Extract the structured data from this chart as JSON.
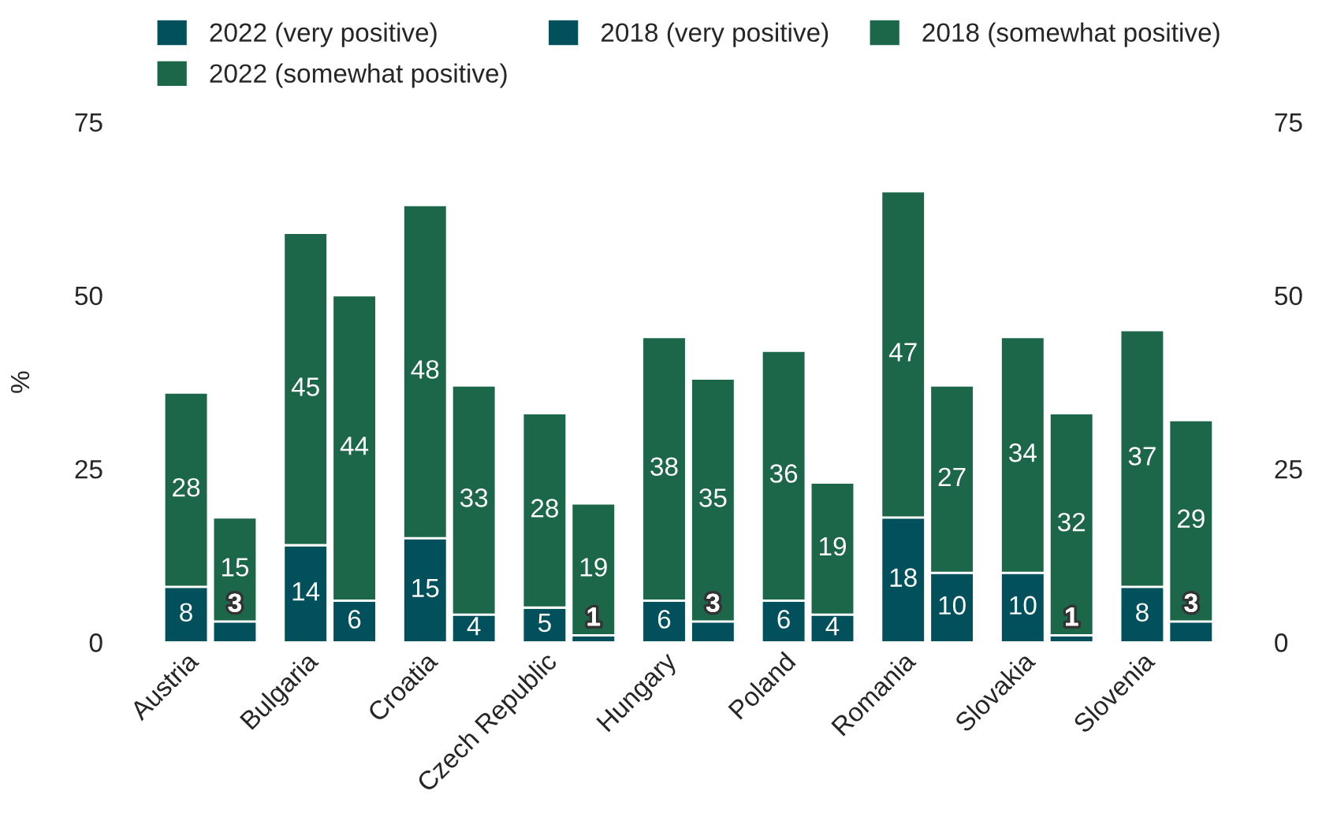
{
  "chart_data": {
    "type": "bar",
    "stacked": true,
    "ylabel": "%",
    "categories": [
      "Austria",
      null,
      "Bulgaria",
      null,
      "Croatia",
      null,
      "Czech Republic",
      null,
      "Hungary",
      null,
      "Poland",
      null,
      "Romania",
      null,
      "Slovakia",
      null,
      "Slovenia",
      null
    ],
    "series": [
      {
        "name": "2022 (very positive)",
        "color": "#02505c",
        "values": [
          8,
          null,
          14,
          null,
          15,
          null,
          5,
          null,
          6,
          null,
          6,
          null,
          18,
          null,
          10,
          null,
          8,
          null
        ]
      },
      {
        "name": "2022 (somewhat positive)",
        "color": "#1c6749",
        "values": [
          28,
          null,
          45,
          null,
          48,
          null,
          28,
          null,
          38,
          null,
          36,
          null,
          47,
          null,
          34,
          null,
          37,
          null
        ]
      },
      {
        "name": "2018 (very positive)",
        "color": "#02505c",
        "values": [
          null,
          3,
          null,
          6,
          null,
          4,
          null,
          1,
          null,
          3,
          null,
          4,
          null,
          10,
          null,
          1,
          null,
          3
        ]
      },
      {
        "name": "2018 (somewhat positive)",
        "color": "#1c6749",
        "values": [
          null,
          15,
          null,
          44,
          null,
          33,
          null,
          19,
          null,
          35,
          null,
          19,
          null,
          27,
          null,
          32,
          null,
          29
        ]
      }
    ],
    "ylim": [
      0,
      75
    ],
    "yticks": [
      0,
      25,
      50,
      75
    ],
    "y2lim": [
      0,
      75
    ],
    "y2ticks": [
      0,
      25,
      50,
      75
    ],
    "data_labels": true,
    "grid": false,
    "legend": "top"
  }
}
